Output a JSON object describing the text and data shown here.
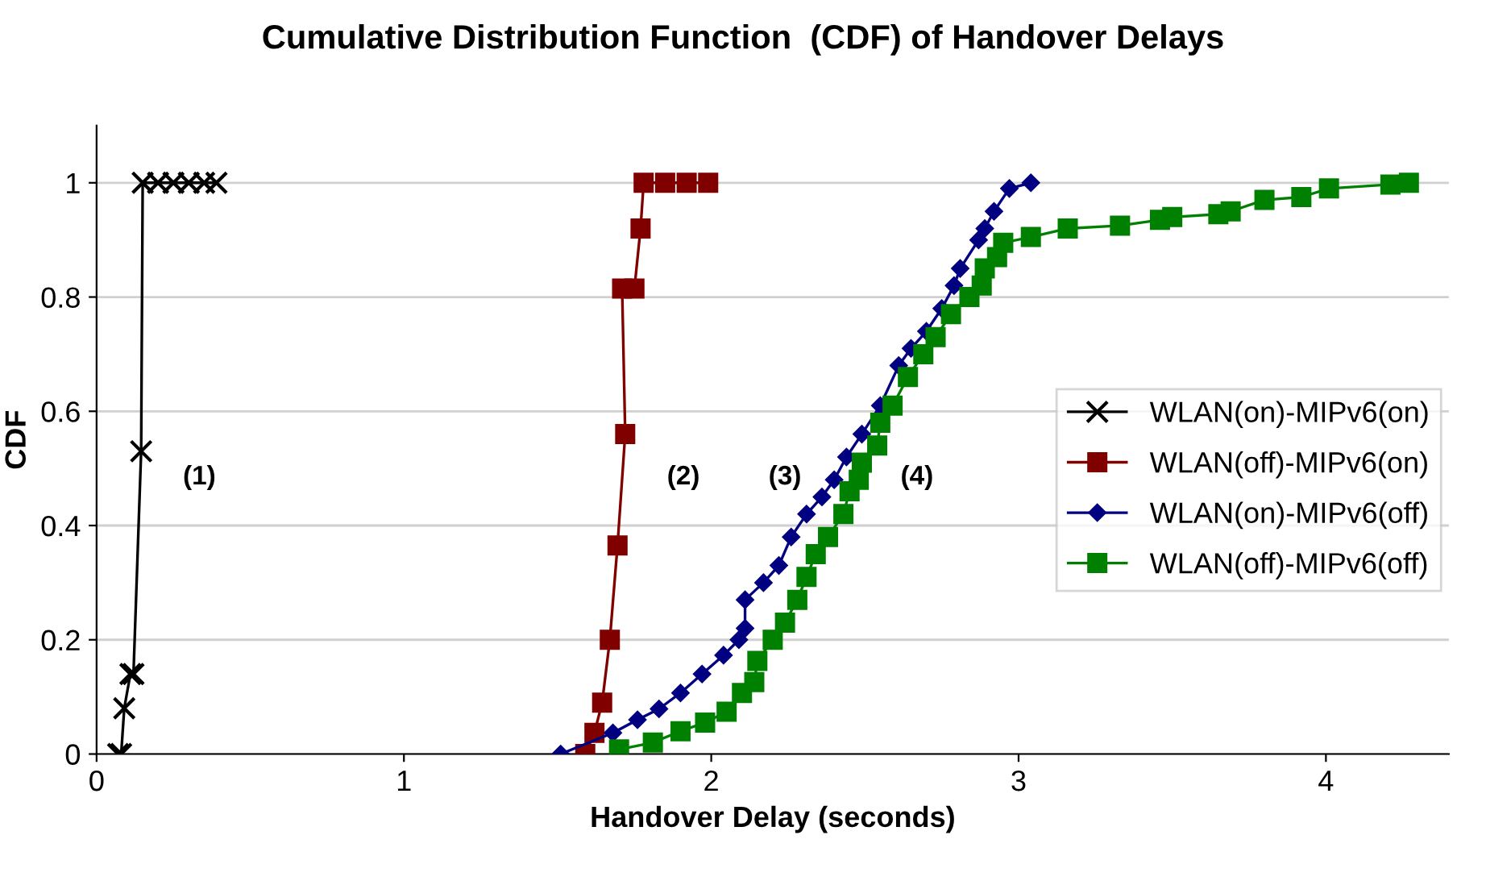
{
  "chart_data": {
    "type": "line",
    "title": "Cumulative Distribution Function  (CDF) of Handover Delays",
    "xlabel": "Handover Delay (seconds)",
    "ylabel": "CDF",
    "xlim": [
      0,
      4.4
    ],
    "xticks": [
      0,
      1,
      2,
      3,
      4
    ],
    "ylim": [
      0,
      1.1
    ],
    "yticks": [
      0,
      0.2,
      0.4,
      0.6,
      0.8,
      1
    ],
    "grid": "y",
    "legend": "right",
    "annotations": [
      "(1)",
      "(2)",
      "(3)",
      "(4)"
    ],
    "series": [
      {
        "name": "WLAN(on)-MIPv6(on)",
        "color": "#000000",
        "marker": "cross",
        "x": [
          0.07,
          0.08,
          0.09,
          0.11,
          0.12,
          0.145,
          0.15,
          0.2,
          0.25,
          0.3,
          0.35,
          0.39
        ],
        "values": [
          0,
          0,
          0.08,
          0.14,
          0.14,
          0.53,
          1,
          1,
          1,
          1,
          1,
          1
        ]
      },
      {
        "name": "WLAN(off)-MIPv6(on)",
        "color": "#800000",
        "marker": "square",
        "x": [
          1.59,
          1.62,
          1.645,
          1.67,
          1.695,
          1.72,
          1.71,
          1.75,
          1.77,
          1.78,
          1.85,
          1.92,
          1.99
        ],
        "values": [
          0,
          0.037,
          0.09,
          0.2,
          0.365,
          0.56,
          0.815,
          0.815,
          0.92,
          1,
          1,
          1,
          1
        ]
      },
      {
        "name": "WLAN(on)-MIPv6(off)",
        "color": "#000080",
        "marker": "diamond",
        "x": [
          1.51,
          1.68,
          1.76,
          1.83,
          1.9,
          1.97,
          2.04,
          2.09,
          2.11,
          2.11,
          2.17,
          2.22,
          2.26,
          2.31,
          2.36,
          2.4,
          2.44,
          2.49,
          2.55,
          2.61,
          2.65,
          2.7,
          2.75,
          2.79,
          2.81,
          2.87,
          2.89,
          2.92,
          2.97,
          3.04
        ],
        "values": [
          0,
          0.037,
          0.06,
          0.079,
          0.107,
          0.14,
          0.173,
          0.2,
          0.22,
          0.27,
          0.3,
          0.33,
          0.38,
          0.42,
          0.45,
          0.48,
          0.52,
          0.56,
          0.61,
          0.68,
          0.71,
          0.74,
          0.78,
          0.82,
          0.85,
          0.9,
          0.92,
          0.95,
          0.99,
          1
        ]
      },
      {
        "name": "WLAN(off)-MIPv6(off)",
        "color": "#008000",
        "marker": "square",
        "x": [
          1.7,
          1.81,
          1.9,
          1.98,
          2.05,
          2.1,
          2.14,
          2.15,
          2.2,
          2.24,
          2.28,
          2.31,
          2.34,
          2.38,
          2.43,
          2.45,
          2.48,
          2.49,
          2.54,
          2.55,
          2.59,
          2.64,
          2.69,
          2.73,
          2.78,
          2.84,
          2.88,
          2.89,
          2.93,
          2.95,
          3.04,
          3.16,
          3.33,
          3.46,
          3.5,
          3.65,
          3.69,
          3.8,
          3.92,
          4.01,
          4.21,
          4.27
        ],
        "values": [
          0.008,
          0.02,
          0.04,
          0.055,
          0.074,
          0.107,
          0.126,
          0.163,
          0.2,
          0.23,
          0.27,
          0.31,
          0.35,
          0.38,
          0.42,
          0.46,
          0.48,
          0.51,
          0.54,
          0.58,
          0.61,
          0.66,
          0.7,
          0.73,
          0.77,
          0.8,
          0.82,
          0.85,
          0.87,
          0.895,
          0.905,
          0.92,
          0.925,
          0.935,
          0.94,
          0.945,
          0.95,
          0.97,
          0.975,
          0.99,
          0.997,
          1
        ]
      }
    ]
  }
}
